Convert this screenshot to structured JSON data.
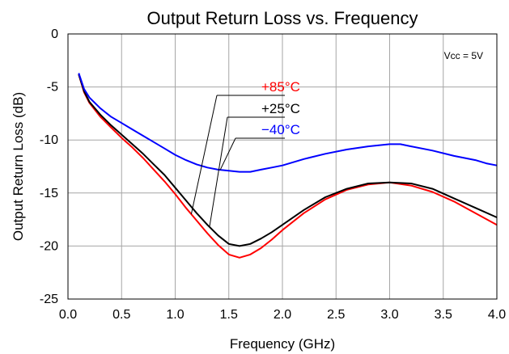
{
  "chart_data": {
    "type": "line",
    "title": "Output Return Loss vs. Frequency",
    "xlabel": "Frequency (GHz)",
    "ylabel": "Output Return Loss (dB)",
    "xlim": [
      0,
      4
    ],
    "ylim": [
      -25,
      0
    ],
    "x_ticks": [
      "0.0",
      "0.5",
      "1.0",
      "1.5",
      "2.0",
      "2.5",
      "3.0",
      "3.5",
      "4.0"
    ],
    "y_ticks": [
      "0",
      "-5",
      "-10",
      "-15",
      "-20",
      "-25"
    ],
    "grid": true,
    "annotation": "Vcc = 5V",
    "series": [
      {
        "name": "+85°C",
        "color": "#ff0000",
        "x": [
          0.1,
          0.15,
          0.2,
          0.3,
          0.4,
          0.5,
          0.6,
          0.7,
          0.8,
          0.9,
          1.0,
          1.1,
          1.2,
          1.3,
          1.4,
          1.5,
          1.6,
          1.7,
          1.8,
          1.9,
          2.0,
          2.2,
          2.4,
          2.6,
          2.8,
          3.0,
          3.2,
          3.4,
          3.6,
          3.8,
          4.0
        ],
        "values": [
          -3.8,
          -5.5,
          -6.5,
          -7.8,
          -8.8,
          -9.8,
          -10.7,
          -11.7,
          -12.8,
          -13.9,
          -15.1,
          -16.4,
          -17.6,
          -18.8,
          -19.9,
          -20.8,
          -21.1,
          -20.8,
          -20.2,
          -19.4,
          -18.5,
          -16.9,
          -15.6,
          -14.7,
          -14.2,
          -14.0,
          -14.3,
          -14.9,
          -15.8,
          -16.9,
          -18.0
        ]
      },
      {
        "name": "+25°C",
        "color": "#000000",
        "x": [
          0.1,
          0.15,
          0.2,
          0.3,
          0.4,
          0.5,
          0.6,
          0.7,
          0.8,
          0.9,
          1.0,
          1.1,
          1.2,
          1.3,
          1.4,
          1.5,
          1.6,
          1.7,
          1.8,
          1.9,
          2.0,
          2.2,
          2.4,
          2.6,
          2.8,
          3.0,
          3.2,
          3.4,
          3.6,
          3.8,
          4.0
        ],
        "values": [
          -3.8,
          -5.4,
          -6.4,
          -7.6,
          -8.6,
          -9.5,
          -10.4,
          -11.3,
          -12.3,
          -13.3,
          -14.5,
          -15.7,
          -16.9,
          -18.0,
          -19.0,
          -19.8,
          -20.0,
          -19.8,
          -19.3,
          -18.7,
          -18.0,
          -16.6,
          -15.4,
          -14.6,
          -14.1,
          -14.0,
          -14.1,
          -14.6,
          -15.5,
          -16.4,
          -17.3
        ]
      },
      {
        "name": "−40°C",
        "color": "#0000ff",
        "x": [
          0.1,
          0.15,
          0.2,
          0.3,
          0.4,
          0.5,
          0.6,
          0.7,
          0.8,
          0.9,
          1.0,
          1.1,
          1.2,
          1.3,
          1.4,
          1.5,
          1.6,
          1.7,
          1.8,
          1.9,
          2.0,
          2.2,
          2.4,
          2.6,
          2.8,
          3.0,
          3.1,
          3.2,
          3.4,
          3.6,
          3.8,
          3.9,
          4.0
        ],
        "values": [
          -3.7,
          -5.2,
          -6.0,
          -7.0,
          -7.8,
          -8.4,
          -9.0,
          -9.6,
          -10.2,
          -10.8,
          -11.4,
          -11.9,
          -12.3,
          -12.6,
          -12.8,
          -12.9,
          -13.0,
          -13.0,
          -12.8,
          -12.6,
          -12.4,
          -11.8,
          -11.3,
          -10.9,
          -10.6,
          -10.4,
          -10.4,
          -10.6,
          -11.0,
          -11.5,
          -11.9,
          -12.2,
          -12.4
        ]
      }
    ]
  }
}
